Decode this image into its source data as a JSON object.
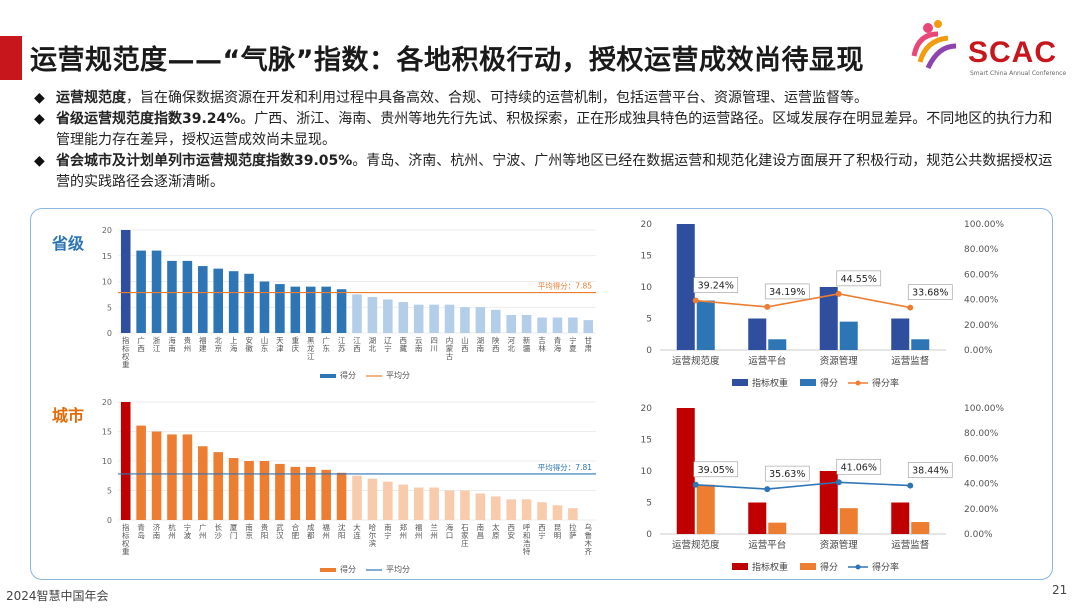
{
  "page": {
    "title": "运营规范度——“气脉”指数：各地积极行动，授权运营成效尚待显现",
    "logo_text": "SCAC",
    "logo_sub": "Smart China Annual Conference",
    "footer": "2024智慧中国年会",
    "page_number": "21",
    "bullets": [
      {
        "bold": "运营规范度",
        "text": "，旨在确保数据资源在开发和利用过程中具备高效、合规、可持续的运营机制，包括运营平台、资源管理、运营监督等。"
      },
      {
        "bold": "省级运营规范度指数39.24%",
        "text": "。广西、浙江、海南、贵州等地先行先试、积极探索，正在形成独具特色的运营路径。区域发展存在明显差异。不同地区的执行力和管理能力存在差异，授权运营成效尚未显现。"
      },
      {
        "bold": "省会城市及计划单列市运营规范度指数39.05%",
        "text": "。青岛、济南、杭州、宁波、广州等地区已经在数据运营和规范化建设方面展开了积极行动，规范公共数据授权运营的实践路径会逐渐清晰。"
      }
    ],
    "section_labels": {
      "province": "省级",
      "city": "城市"
    },
    "colors": {
      "accent": "#c8161d",
      "prov_dark": "#2f4f9e",
      "prov_mid": "#2e75b6",
      "prov_light": "#b4cde8",
      "city_dark": "#c00000",
      "city_mid": "#ed7d31",
      "city_light": "#f8cbad"
    }
  },
  "chart_data": [
    {
      "type": "bar",
      "id": "province-bar",
      "categories": [
        "指标权重",
        "广西",
        "浙江",
        "海南",
        "贵州",
        "福建",
        "北京",
        "上海",
        "安徽",
        "山东",
        "天津",
        "重庆",
        "黑龙江",
        "广东",
        "江苏",
        "江西",
        "湖北",
        "辽宁",
        "西藏",
        "云南",
        "四川",
        "内蒙古",
        "山西",
        "湖南",
        "陕西",
        "河北",
        "新疆",
        "吉林",
        "青海",
        "宁夏",
        "甘肃"
      ],
      "values": [
        20,
        16,
        16,
        14,
        14,
        13,
        12.5,
        12,
        11.5,
        10,
        9.5,
        9,
        9,
        9,
        8.5,
        7.5,
        7,
        6.5,
        6,
        5.5,
        5.5,
        5.5,
        5,
        5,
        4.5,
        3.5,
        3.5,
        3,
        3,
        3,
        2.5
      ],
      "average": 7.85,
      "average_label": "平均得分：7.85",
      "ylim": [
        0,
        20
      ],
      "yticks": [
        0,
        5,
        10,
        15,
        20
      ],
      "legend": [
        "得分",
        "平均分"
      ]
    },
    {
      "type": "bar+line",
      "id": "province-combo",
      "categories": [
        "运营规范度",
        "运营平台",
        "资源管理",
        "运营监督"
      ],
      "series": [
        {
          "name": "指标权重",
          "values": [
            20,
            5,
            10,
            5
          ]
        },
        {
          "name": "得分",
          "values": [
            7.85,
            1.7,
            4.5,
            1.7
          ]
        },
        {
          "name": "得分率",
          "values": [
            39.24,
            34.19,
            44.55,
            33.68
          ],
          "labels": [
            "39.24%",
            "34.19%",
            "44.55%",
            "33.68%"
          ]
        }
      ],
      "ylim": [
        0,
        20
      ],
      "yticks": [
        0,
        5,
        10,
        15,
        20
      ],
      "y2ticks": [
        "0.00%",
        "20.00%",
        "40.00%",
        "60.00%",
        "80.00%",
        "100.00%"
      ]
    },
    {
      "type": "bar",
      "id": "city-bar",
      "categories": [
        "指标权重",
        "青岛",
        "济南",
        "杭州",
        "宁波",
        "广州",
        "长沙",
        "厦门",
        "南京",
        "贵阳",
        "武汉",
        "合肥",
        "成都",
        "福州",
        "沈阳",
        "大连",
        "哈尔滨",
        "南宁",
        "郑州",
        "福州",
        "兰州",
        "海口",
        "石家庄",
        "南昌",
        "太原",
        "西安",
        "呼和浩特",
        "西宁",
        "昆明",
        "拉萨",
        "乌鲁木齐"
      ],
      "values": [
        20,
        16,
        15,
        14.5,
        14.5,
        12.5,
        11.5,
        10.5,
        10,
        10,
        9.5,
        9,
        9,
        8.5,
        8,
        7.5,
        7,
        6.5,
        6,
        5.5,
        5.5,
        5,
        5,
        4.5,
        4,
        3.5,
        3.5,
        3,
        2.5,
        2,
        0
      ],
      "average": 7.81,
      "average_label": "平均得分：7.81",
      "ylim": [
        0,
        20
      ],
      "yticks": [
        0,
        5,
        10,
        15,
        20
      ],
      "legend": [
        "得分",
        "平均分"
      ]
    },
    {
      "type": "bar+line",
      "id": "city-combo",
      "categories": [
        "运营规范度",
        "运营平台",
        "资源管理",
        "运营监督"
      ],
      "series": [
        {
          "name": "指标权重",
          "values": [
            20,
            5,
            10,
            5
          ]
        },
        {
          "name": "得分",
          "values": [
            7.81,
            1.8,
            4.1,
            1.9
          ]
        },
        {
          "name": "得分率",
          "values": [
            39.05,
            35.63,
            41.06,
            38.44
          ],
          "labels": [
            "39.05%",
            "35.63%",
            "41.06%",
            "38.44%"
          ]
        }
      ],
      "ylim": [
        0,
        20
      ],
      "yticks": [
        0,
        5,
        10,
        15,
        20
      ],
      "y2ticks": [
        "0.00%",
        "20.00%",
        "40.00%",
        "60.00%",
        "80.00%",
        "100.00%"
      ]
    }
  ]
}
